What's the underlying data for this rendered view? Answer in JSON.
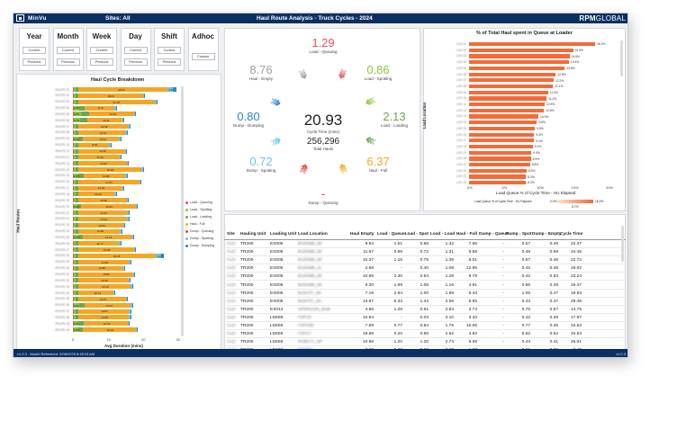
{
  "header": {
    "app_name": "MinVu",
    "sites": "Sites: All",
    "title": "Haul Route Analysis - Truck Cycles - 2024",
    "brand_bold": "RPM",
    "brand_light": "GLOBAL"
  },
  "footer": {
    "refresh": "v1.0.3 - Model Refreshed: 3/06/2025 8:45:03 AM",
    "version": "v1.0.3"
  },
  "periods": [
    {
      "label": "Year",
      "current": "Current",
      "previous": "Previous"
    },
    {
      "label": "Month",
      "current": "Current",
      "previous": "Previous"
    },
    {
      "label": "Week",
      "current": "Current",
      "previous": "Previous"
    },
    {
      "label": "Day",
      "current": "Current",
      "previous": "Previous"
    },
    {
      "label": "Shift",
      "current": "Current",
      "previous": "Previous"
    },
    {
      "label": "Adhoc",
      "custom": "Custom"
    }
  ],
  "colors": {
    "load_queuing": "#e8505b",
    "load_spotting": "#8cc63f",
    "load_loading": "#6aa84f",
    "haul_full": "#f5a623",
    "dump_queuing": "#e8452c",
    "dump_spotting": "#6ec6e6",
    "dump_dumping": "#2f86c9",
    "haul_empty": "#9aa0a6",
    "queue_bar": "#f26b38"
  },
  "breakdown": {
    "title": "Haul Cycle Breakdown",
    "y_axis": "Haul Routes",
    "x_axis": "Avg Duration (mins)",
    "ticks": [
      "0",
      "10",
      "20",
      "30"
    ],
    "legend": [
      "Load - Queuing",
      "Load - Spotting",
      "Load - Loading",
      "Haul - Full",
      "Dump - Queuing",
      "Dump - Spotting",
      "Dump - Dumping"
    ],
    "rows": [
      {
        "route": "ROUTE 01",
        "haul_full": "25.61",
        "dump": "2.6"
      },
      {
        "route": "ROUTE 02",
        "haul_full": "18.64"
      },
      {
        "route": "ROUTE 03",
        "haul_full": "22.18"
      },
      {
        "route": "ROUTE 04",
        "load": "2.99",
        "haul_full": "8.72"
      },
      {
        "route": "ROUTE 05",
        "load": "4.38",
        "haul_full": "12.82"
      },
      {
        "route": "ROUTE 06",
        "load": "3.75",
        "haul_full": "10.11"
      },
      {
        "route": "ROUTE 07",
        "haul_full": "14.39"
      },
      {
        "route": "ROUTE 08",
        "haul_full": "13.64"
      },
      {
        "route": "ROUTE 09",
        "load": "2.63",
        "haul_full": "10.34"
      },
      {
        "route": "ROUTE 10",
        "haul_full": "8.92"
      },
      {
        "route": "ROUTE 11",
        "haul_full": "13.46"
      },
      {
        "route": "ROUTE 12",
        "haul_full": "11.92"
      },
      {
        "route": "ROUTE 13",
        "haul_full": "13.95"
      },
      {
        "route": "ROUTE 14",
        "haul_full": "18.28"
      },
      {
        "route": "ROUTE 15",
        "load": "2.88",
        "haul_full": "11.89"
      },
      {
        "route": "ROUTE 16",
        "haul_full": "17.57"
      },
      {
        "route": "ROUTE 17",
        "haul_full": "12.63"
      },
      {
        "route": "ROUTE 18",
        "haul_full": "10.49"
      },
      {
        "route": "ROUTE 19",
        "haul_full": "13.98"
      },
      {
        "route": "ROUTE 20",
        "load": "2.09",
        "haul_full": "15.62"
      },
      {
        "route": "ROUTE 21",
        "haul_full": "14.15"
      },
      {
        "route": "ROUTE 22",
        "haul_full": "14.12"
      },
      {
        "route": "ROUTE 23",
        "haul_full": "12.94"
      },
      {
        "route": "ROUTE 24",
        "haul_full": "11.99"
      },
      {
        "route": "ROUTE 25",
        "load": "2.55",
        "haul_full": "14.22"
      },
      {
        "route": "ROUTE 26",
        "haul_full": "11.77"
      },
      {
        "route": "ROUTE 27",
        "haul_full": "16.08"
      },
      {
        "route": "ROUTE 28",
        "haul_full": "22.43",
        "dump": "2.27"
      },
      {
        "route": "ROUTE 29",
        "haul_full": "14.68"
      },
      {
        "route": "ROUTE 30",
        "haul_full": "12.88"
      },
      {
        "route": "ROUTE 31",
        "haul_full": "15.81"
      },
      {
        "route": "ROUTE 32",
        "haul_full": "14.50"
      },
      {
        "route": "ROUTE 33",
        "haul_full": "15.13"
      },
      {
        "route": "ROUTE 34",
        "haul_full": "10.14"
      },
      {
        "route": "ROUTE 35",
        "haul_full": "13.71"
      },
      {
        "route": "ROUTE 36",
        "load": "3.11",
        "haul_full": "13.24"
      },
      {
        "route": "ROUTE 37",
        "haul_full": "14.67"
      },
      {
        "route": "ROUTE 38",
        "haul_full": "14.59"
      },
      {
        "route": "ROUTE 39",
        "load": "2.67",
        "haul_full": "12.76"
      },
      {
        "route": "ROUTE 40",
        "load": "2.55",
        "haul_full": "15.22"
      }
    ]
  },
  "cycle": {
    "center_value": "20.93",
    "center_label": "Cycle Time (mins)",
    "hauls_value": "256,296",
    "hauls_label": "Total Hauls",
    "steps": [
      {
        "key": "load_queuing",
        "value": "1.29",
        "label": "Load - Queuing"
      },
      {
        "key": "load_spotting",
        "value": "0.86",
        "label": "Load - Spotting"
      },
      {
        "key": "load_loading",
        "value": "2.13",
        "label": "Load - Loading"
      },
      {
        "key": "haul_full",
        "value": "6.37",
        "label": "Haul - Full"
      },
      {
        "key": "dump_queuing",
        "value": "-",
        "label": "Dump - Queuing"
      },
      {
        "key": "dump_spotting",
        "value": "0.72",
        "label": "Dump - Spotting"
      },
      {
        "key": "dump_dumping",
        "value": "0.80",
        "label": "Dump - Dumping"
      },
      {
        "key": "haul_empty",
        "value": "8.76",
        "label": "Haul - Empty"
      }
    ]
  },
  "queue_chart": {
    "title": "% of Total Haul spent in Queue at Loader",
    "y_axis": "Load Location",
    "x_axis": "Load Queue % of Cycle Time - HU Elapsed",
    "ticks": [
      "0%",
      "5%",
      "10%",
      "15%",
      "20%"
    ],
    "legend_label": "Load Queue % of Cycle Time - HU Elapsed",
    "legend_min": "0.0%",
    "legend_max": "18.2%",
    "legend_mid": "6.7%",
    "bars": [
      {
        "loc": "LOC 01",
        "pct": 18.2,
        "label": "18.2%"
      },
      {
        "loc": "LOC 02",
        "pct": 15.0,
        "label": "15.0%"
      },
      {
        "loc": "LOC 03",
        "pct": 14.5,
        "label": "14.5%"
      },
      {
        "loc": "LOC 04",
        "pct": 14.4,
        "label": "14.4%"
      },
      {
        "loc": "LOC 05",
        "pct": 13.8,
        "label": "13.8%"
      },
      {
        "loc": "LOC 06",
        "pct": 12.5,
        "label": "12.5%"
      },
      {
        "loc": "LOC 07",
        "pct": 12.2,
        "label": "12.2%"
      },
      {
        "loc": "LOC 08",
        "pct": 12.1,
        "label": "12.1%"
      },
      {
        "loc": "LOC 09",
        "pct": 11.4,
        "label": "11.4%"
      },
      {
        "loc": "LOC 10",
        "pct": 11.2,
        "label": "11.2%"
      },
      {
        "loc": "LOC 11",
        "pct": 10.9,
        "label": "10.9%"
      },
      {
        "loc": "LOC 12",
        "pct": 10.8,
        "label": "10.8%"
      },
      {
        "loc": "LOC 13",
        "pct": 10.0,
        "label": "10.0%"
      },
      {
        "loc": "LOC 14",
        "pct": 9.8,
        "label": "9.8%"
      },
      {
        "loc": "LOC 15",
        "pct": 9.5,
        "label": "9.5%"
      },
      {
        "loc": "LOC 16",
        "pct": 9.4,
        "label": "9.4%"
      },
      {
        "loc": "LOC 17",
        "pct": 9.4,
        "label": "9.4%"
      },
      {
        "loc": "LOC 18",
        "pct": 9.2,
        "label": "9.2%"
      },
      {
        "loc": "LOC 19",
        "pct": 9.0,
        "label": "9.0%"
      },
      {
        "loc": "LOC 20",
        "pct": 8.9,
        "label": "8.9%"
      },
      {
        "loc": "LOC 21",
        "pct": 8.8,
        "label": "8.8%"
      },
      {
        "loc": "LOC 22",
        "pct": 8.3,
        "label": "8.3%"
      },
      {
        "loc": "LOC 23",
        "pct": 8.2,
        "label": "8.2%"
      },
      {
        "loc": "LOC 24",
        "pct": 8.2,
        "label": "8.2%"
      }
    ]
  },
  "table": {
    "headers": [
      "Site",
      "Hauling Unit",
      "Loading Unit",
      "Load Location",
      "Haul Empty",
      "Load - Queue",
      "Load - Spot",
      "Load - Load",
      "Haul - Full",
      "Dump - Queue",
      "Dump - Spot",
      "Dump - Empty",
      "Cycle Time"
    ],
    "rows": [
      [
        "CLD",
        "TR200",
        "EX005",
        "BUKIMB_58",
        "9.94",
        "1.51",
        "0.88",
        "1.32",
        "7.66",
        "-",
        "0.57",
        "0.49",
        "22.37"
      ],
      [
        "CLD",
        "TR200",
        "EX005",
        "BUKIMB_58",
        "11.67",
        "0.99",
        "0.72",
        "1.31",
        "8.58",
        "-",
        "0.48",
        "0.69",
        "24.45"
      ],
      [
        "CLD",
        "TR200",
        "EX005",
        "BUKIMB_58",
        "10.37",
        "1.15",
        "0.75",
        "1.39",
        "8.01",
        "-",
        "0.57",
        "0.48",
        "22.72"
      ],
      [
        "CLD",
        "TR200",
        "EX005",
        "BUKIMB_11",
        "2.68",
        "-",
        "0.40",
        "1.08",
        "12.95",
        "-",
        "0.42",
        "0.48",
        "18.02"
      ],
      [
        "CLD",
        "TR200",
        "EX005",
        "BUKIMB_58",
        "10.99",
        "2.30",
        "0.94",
        "1.28",
        "6.78",
        "-",
        "0.42",
        "0.53",
        "23.24"
      ],
      [
        "CLD",
        "TR200",
        "EX005",
        "BUKIMB_58",
        "9.30",
        "1.99",
        "1.06",
        "1.16",
        "4.91",
        "-",
        "0.55",
        "0.49",
        "19.47"
      ],
      [
        "CLD",
        "TR200",
        "EX005",
        "BUKITC_58",
        "7.16",
        "2.84",
        "1.00",
        "1.98",
        "5.43",
        "-",
        "1.05",
        "0.47",
        "19.93"
      ],
      [
        "CLD",
        "TR200",
        "EX005",
        "BUKITC_58",
        "13.67",
        "5.33",
        "1.44",
        "2.56",
        "5.55",
        "-",
        "0.43",
        "0.47",
        "29.46"
      ],
      [
        "CLD",
        "TR200",
        "EX014",
        "SPDNCSN_BUB",
        "4.66",
        "1.28",
        "0.91",
        "2.84",
        "3.74",
        "-",
        "0.76",
        "0.57",
        "14.75"
      ],
      [
        "CLD",
        "TR200",
        "LD608",
        "FSP33",
        "10.94",
        "-",
        "0.03",
        "3.10",
        "3.10",
        "-",
        "0.42",
        "0.39",
        "17.97"
      ],
      [
        "CLD",
        "TR200",
        "LD608",
        "FSP336",
        "7.89",
        "0.77",
        "0.84",
        "1.75",
        "10.06",
        "-",
        "0.77",
        "0.45",
        "22.52"
      ],
      [
        "CLD",
        "TR200",
        "LD608",
        "FSP17",
        "19.89",
        "0.20",
        "0.86",
        "2.62",
        "4.82",
        "-",
        "5.62",
        "0.52",
        "34.53"
      ],
      [
        "CLD",
        "TR200",
        "LD608",
        "RUBCTI_SP",
        "10.96",
        "1.20",
        "1.20",
        "2.74",
        "9.08",
        "-",
        "0.43",
        "0.41",
        "26.01"
      ],
      [
        "CLD",
        "TR200",
        "LD608",
        "RDMB4",
        "2.59",
        "0.03",
        "0.68",
        "2.90",
        "1.37",
        "-",
        "0.51",
        "0.38",
        "8.46"
      ]
    ]
  }
}
